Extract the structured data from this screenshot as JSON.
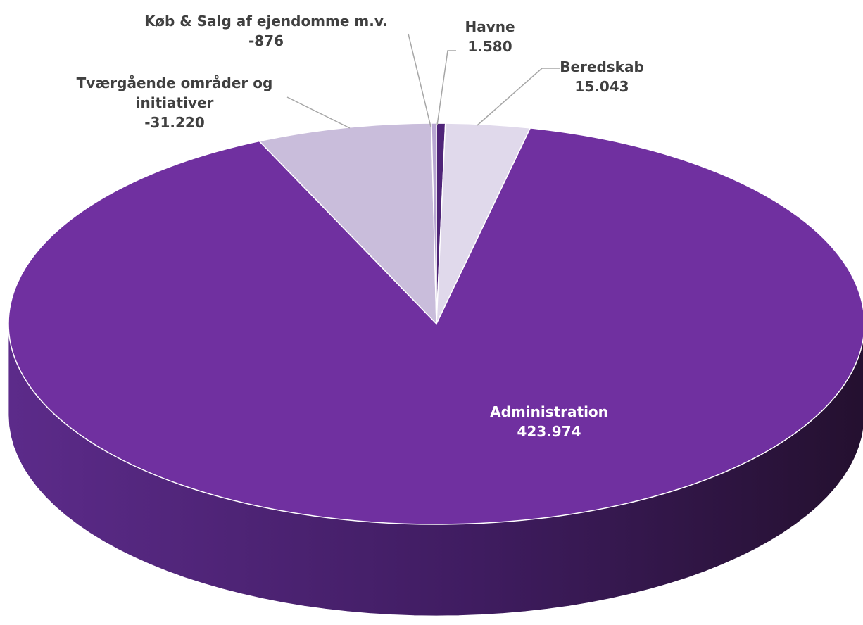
{
  "chart_data": {
    "type": "pie",
    "categories": [
      "Havne",
      "Beredskab",
      "Administration",
      "Tværgående områder og initiativer",
      "Køb & Salg af ejendomme m.v."
    ],
    "values": [
      1580,
      15043,
      423974,
      -31220,
      -876
    ],
    "value_labels": [
      "1.580",
      "15.043",
      "423.974",
      "-31.220",
      "-876"
    ],
    "colors": [
      "#4f2478",
      "#e0d9eb",
      "#7030a0",
      "#c9bddb",
      "#b8a6d2"
    ]
  }
}
